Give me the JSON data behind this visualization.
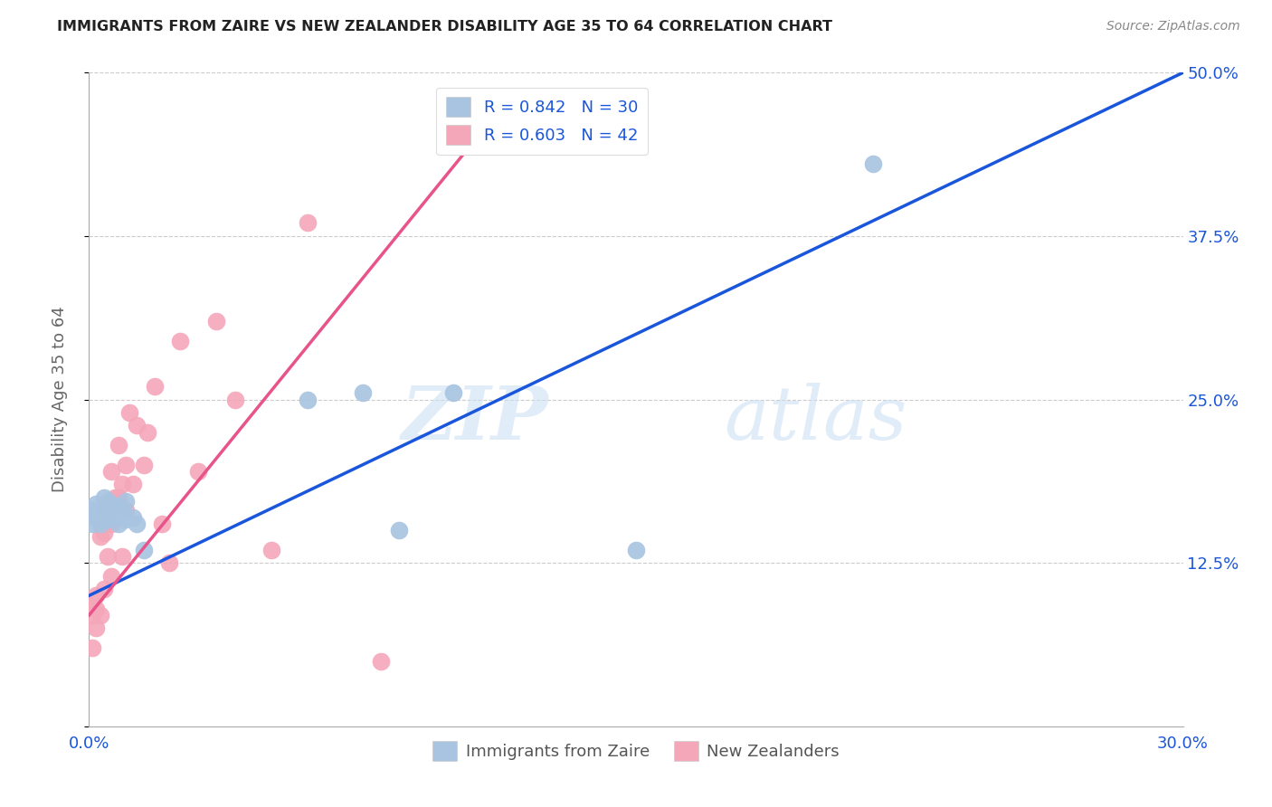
{
  "title": "IMMIGRANTS FROM ZAIRE VS NEW ZEALANDER DISABILITY AGE 35 TO 64 CORRELATION CHART",
  "source": "Source: ZipAtlas.com",
  "xlabel_label": "Immigrants from Zaire",
  "ylabel_label": "Disability Age 35 to 64",
  "xlim": [
    0.0,
    0.3
  ],
  "ylim": [
    0.0,
    0.5
  ],
  "xticks": [
    0.0,
    0.05,
    0.1,
    0.15,
    0.2,
    0.25,
    0.3
  ],
  "xticklabels": [
    "0.0%",
    "",
    "",
    "",
    "",
    "",
    "30.0%"
  ],
  "yticks": [
    0.0,
    0.125,
    0.25,
    0.375,
    0.5
  ],
  "yticklabels": [
    "",
    "12.5%",
    "25.0%",
    "37.5%",
    "50.0%"
  ],
  "blue_R": 0.842,
  "blue_N": 30,
  "pink_R": 0.603,
  "pink_N": 42,
  "blue_color": "#a8c4e0",
  "blue_line_color": "#1a56db",
  "pink_color": "#f4a7b9",
  "pink_line_color": "#e8538a",
  "watermark_zip": "ZIP",
  "watermark_atlas": "atlas",
  "grid_color": "#cccccc",
  "blue_scatter_x": [
    0.001,
    0.001,
    0.002,
    0.002,
    0.003,
    0.003,
    0.003,
    0.004,
    0.004,
    0.004,
    0.005,
    0.005,
    0.005,
    0.006,
    0.006,
    0.007,
    0.008,
    0.008,
    0.009,
    0.01,
    0.01,
    0.012,
    0.013,
    0.015,
    0.06,
    0.075,
    0.085,
    0.1,
    0.15,
    0.215
  ],
  "blue_scatter_y": [
    0.155,
    0.165,
    0.16,
    0.17,
    0.158,
    0.165,
    0.155,
    0.162,
    0.168,
    0.175,
    0.158,
    0.165,
    0.172,
    0.162,
    0.17,
    0.16,
    0.155,
    0.168,
    0.165,
    0.158,
    0.172,
    0.16,
    0.155,
    0.135,
    0.25,
    0.255,
    0.15,
    0.255,
    0.135,
    0.43
  ],
  "pink_scatter_x": [
    0.001,
    0.001,
    0.001,
    0.002,
    0.002,
    0.002,
    0.003,
    0.003,
    0.003,
    0.004,
    0.004,
    0.004,
    0.005,
    0.005,
    0.005,
    0.006,
    0.006,
    0.006,
    0.007,
    0.007,
    0.008,
    0.008,
    0.009,
    0.009,
    0.01,
    0.01,
    0.011,
    0.012,
    0.013,
    0.015,
    0.016,
    0.018,
    0.02,
    0.022,
    0.025,
    0.03,
    0.035,
    0.04,
    0.05,
    0.06,
    0.08,
    0.11
  ],
  "pink_scatter_y": [
    0.085,
    0.095,
    0.06,
    0.1,
    0.075,
    0.09,
    0.155,
    0.145,
    0.085,
    0.148,
    0.165,
    0.105,
    0.16,
    0.17,
    0.13,
    0.195,
    0.155,
    0.115,
    0.165,
    0.175,
    0.215,
    0.175,
    0.185,
    0.13,
    0.2,
    0.165,
    0.24,
    0.185,
    0.23,
    0.2,
    0.225,
    0.26,
    0.155,
    0.125,
    0.295,
    0.195,
    0.31,
    0.25,
    0.135,
    0.385,
    0.05,
    0.48
  ],
  "blue_line_x": [
    0.0,
    0.3
  ],
  "blue_line_y": [
    0.1,
    0.5
  ],
  "pink_line_x": [
    0.0,
    0.115
  ],
  "pink_line_y": [
    0.085,
    0.48
  ]
}
